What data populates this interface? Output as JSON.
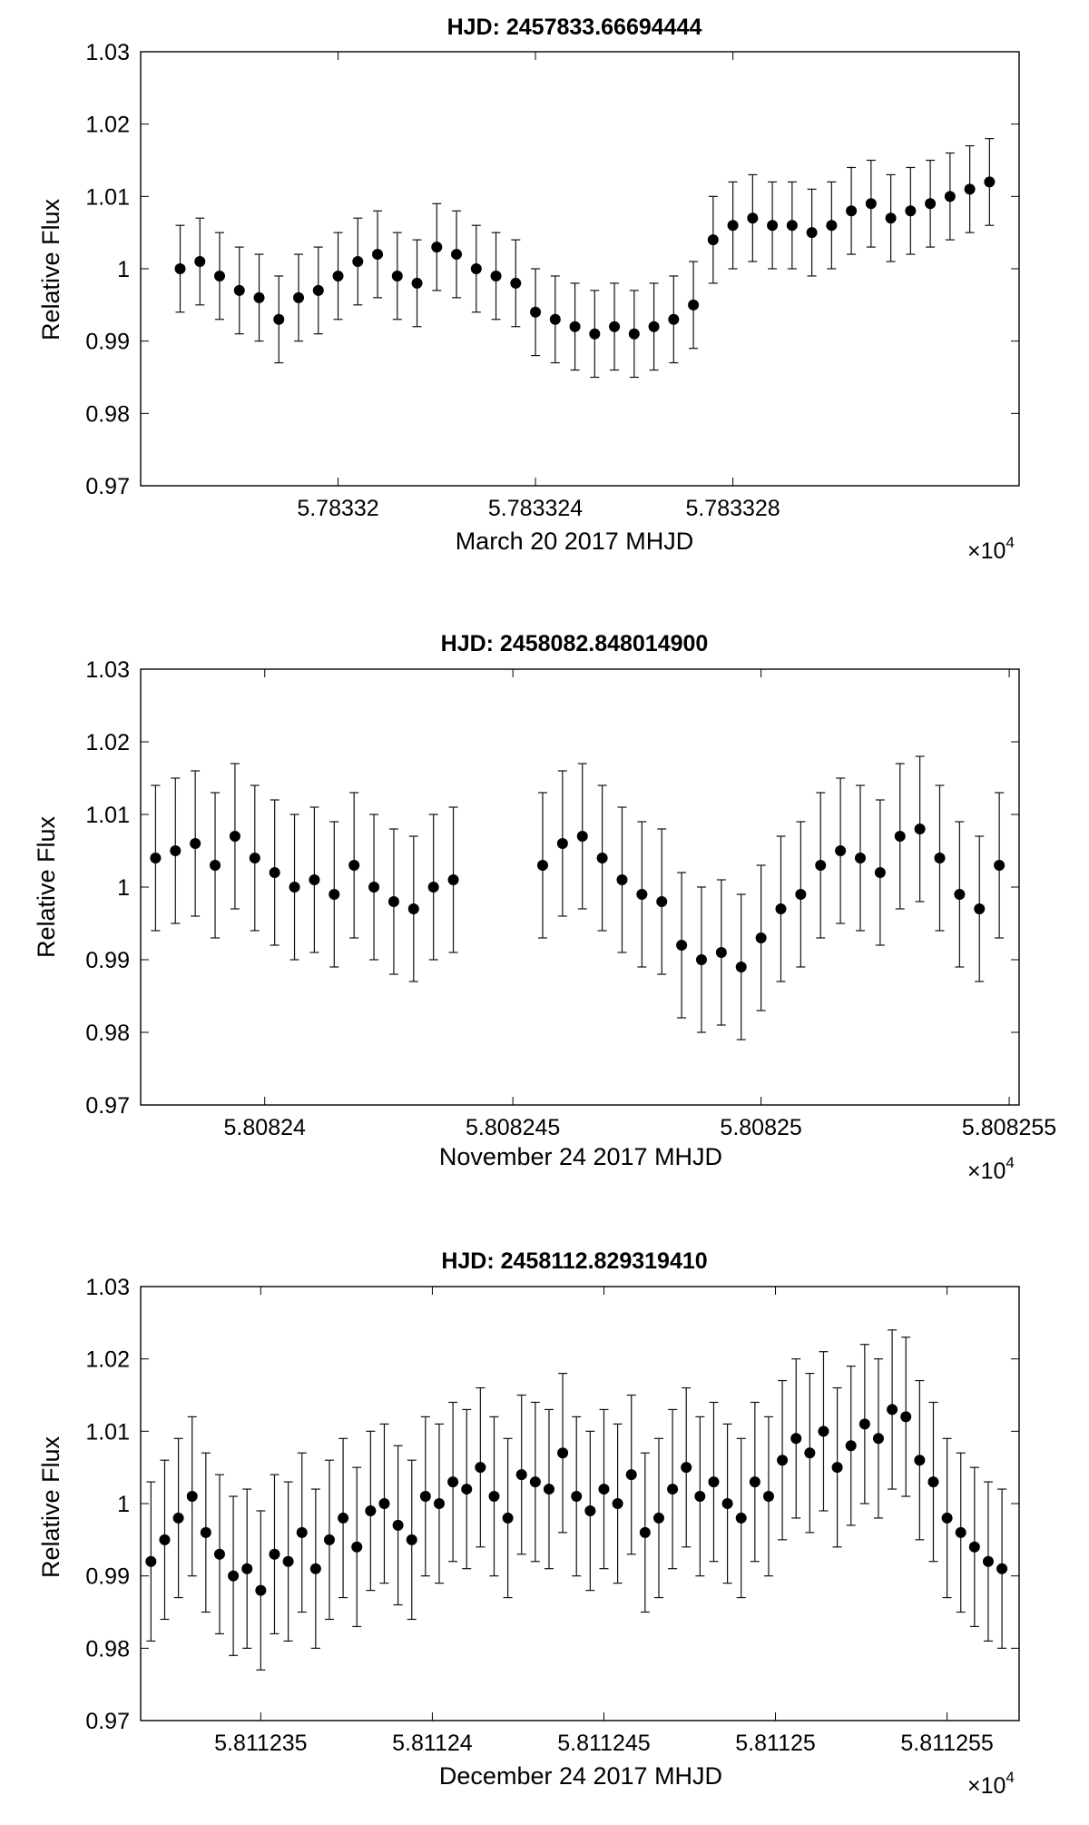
{
  "chart_data": [
    {
      "type": "scatter",
      "title": "HJD: 2457833.66694444",
      "xlabel": "March 20 2017 MHJD",
      "ylabel": "Relative Flux",
      "x_multiplier": "×10^4",
      "xlim": [
        5.783316,
        5.7833338
      ],
      "ylim": [
        0.97,
        1.03
      ],
      "xticks": [
        5.78332,
        5.783324,
        5.783328
      ],
      "xtick_labels": [
        "5.78332",
        "5.783324",
        "5.783328"
      ],
      "yticks": [
        0.97,
        0.98,
        0.99,
        1.0,
        1.01,
        1.02,
        1.03
      ],
      "ytick_labels": [
        "0.97",
        "0.98",
        "0.99",
        "1",
        "1.01",
        "1.02",
        "1.03"
      ],
      "error_bar": 0.006,
      "x": [
        5.7833168,
        5.7833172,
        5.7833176,
        5.783318,
        5.7833184,
        5.7833188,
        5.7833192,
        5.7833196,
        5.78332,
        5.7833204,
        5.7833208,
        5.7833212,
        5.7833216,
        5.783322,
        5.7833224,
        5.7833228,
        5.7833232,
        5.7833236,
        5.783324,
        5.7833244,
        5.7833248,
        5.7833252,
        5.7833256,
        5.783326,
        5.7833264,
        5.7833268,
        5.7833272,
        5.7833276,
        5.783328,
        5.7833284,
        5.7833288,
        5.7833292,
        5.7833296,
        5.78333,
        5.7833304,
        5.7833308,
        5.7833312,
        5.7833316,
        5.783332,
        5.7833324,
        5.7833328,
        5.7833332
      ],
      "y": [
        1.0,
        1.001,
        0.999,
        0.997,
        0.996,
        0.993,
        0.996,
        0.997,
        0.999,
        1.001,
        1.002,
        0.999,
        0.998,
        1.003,
        1.002,
        1.0,
        0.999,
        0.998,
        0.994,
        0.993,
        0.992,
        0.991,
        0.992,
        0.991,
        0.992,
        0.993,
        0.995,
        1.004,
        1.006,
        1.007,
        1.006,
        1.006,
        1.005,
        1.006,
        1.008,
        1.009,
        1.007,
        1.008,
        1.009,
        1.01,
        1.011,
        1.012
      ]
    },
    {
      "type": "scatter",
      "title": "HJD: 2458082.848014900",
      "xlabel": "November 24 2017 MHJD",
      "ylabel": "Relative Flux",
      "x_multiplier": "×10^4",
      "xlim": [
        5.8082375,
        5.8082552
      ],
      "ylim": [
        0.97,
        1.03
      ],
      "xticks": [
        5.80824,
        5.808245,
        5.80825,
        5.808255
      ],
      "xtick_labels": [
        "5.80824",
        "5.808245",
        "5.80825",
        "5.808255"
      ],
      "yticks": [
        0.97,
        0.98,
        0.99,
        1.0,
        1.01,
        1.02,
        1.03
      ],
      "ytick_labels": [
        "0.97",
        "0.98",
        "0.99",
        "1",
        "1.01",
        "1.02",
        "1.03"
      ],
      "error_bar": 0.01,
      "x": [
        5.8082378,
        5.8082382,
        5.8082386,
        5.808239,
        5.8082394,
        5.8082398,
        5.8082402,
        5.8082406,
        5.808241,
        5.8082414,
        5.8082418,
        5.8082422,
        5.8082426,
        5.808243,
        5.8082434,
        5.8082438,
        5.8082456,
        5.808246,
        5.8082464,
        5.8082468,
        5.8082472,
        5.8082476,
        5.808248,
        5.8082484,
        5.8082488,
        5.8082492,
        5.8082496,
        5.80825,
        5.8082504,
        5.8082508,
        5.8082512,
        5.8082516,
        5.808252,
        5.8082524,
        5.8082528,
        5.8082532,
        5.8082536,
        5.808254,
        5.8082544,
        5.8082548
      ],
      "y": [
        1.004,
        1.005,
        1.006,
        1.003,
        1.007,
        1.004,
        1.002,
        1.0,
        1.001,
        0.999,
        1.003,
        1.0,
        0.998,
        0.997,
        1.0,
        1.001,
        1.003,
        1.006,
        1.007,
        1.004,
        1.001,
        0.999,
        0.998,
        0.992,
        0.99,
        0.991,
        0.989,
        0.993,
        0.997,
        0.999,
        1.003,
        1.005,
        1.004,
        1.002,
        1.007,
        1.008,
        1.004,
        0.999,
        0.997,
        1.003
      ]
    },
    {
      "type": "scatter",
      "title": "HJD: 2458112.829319410",
      "xlabel": "December 24 2017 MHJD",
      "ylabel": "Relative Flux",
      "x_multiplier": "×10^4",
      "xlim": [
        5.8112315,
        5.8112571
      ],
      "ylim": [
        0.97,
        1.03
      ],
      "xticks": [
        5.811235,
        5.81124,
        5.811245,
        5.81125,
        5.811255
      ],
      "xtick_labels": [
        "5.811235",
        "5.81124",
        "5.811245",
        "5.81125",
        "5.811255"
      ],
      "yticks": [
        0.97,
        0.98,
        0.99,
        1.0,
        1.01,
        1.02,
        1.03
      ],
      "ytick_labels": [
        "0.97",
        "0.98",
        "0.99",
        "1",
        "1.01",
        "1.02",
        "1.03"
      ],
      "error_bar": 0.011,
      "x": [
        5.8112318,
        5.8112322,
        5.8112326,
        5.811233,
        5.8112334,
        5.8112338,
        5.8112342,
        5.8112346,
        5.811235,
        5.8112354,
        5.8112358,
        5.8112362,
        5.8112366,
        5.811237,
        5.8112374,
        5.8112378,
        5.8112382,
        5.8112386,
        5.811239,
        5.8112394,
        5.8112398,
        5.8112402,
        5.8112406,
        5.811241,
        5.8112414,
        5.8112418,
        5.8112422,
        5.8112426,
        5.811243,
        5.8112434,
        5.8112438,
        5.8112442,
        5.8112446,
        5.811245,
        5.8112454,
        5.8112458,
        5.8112462,
        5.8112466,
        5.811247,
        5.8112474,
        5.8112478,
        5.8112482,
        5.8112486,
        5.811249,
        5.8112494,
        5.8112498,
        5.8112502,
        5.8112506,
        5.811251,
        5.8112514,
        5.8112518,
        5.8112522,
        5.8112526,
        5.811253,
        5.8112534,
        5.8112538,
        5.8112542,
        5.8112546,
        5.811255,
        5.8112554,
        5.8112558,
        5.8112562,
        5.8112566
      ],
      "y": [
        0.992,
        0.995,
        0.998,
        1.001,
        0.996,
        0.993,
        0.99,
        0.991,
        0.988,
        0.993,
        0.992,
        0.996,
        0.991,
        0.995,
        0.998,
        0.994,
        0.999,
        1.0,
        0.997,
        0.995,
        1.001,
        1.0,
        1.003,
        1.002,
        1.005,
        1.001,
        0.998,
        1.004,
        1.003,
        1.002,
        1.007,
        1.001,
        0.999,
        1.002,
        1.0,
        1.004,
        0.996,
        0.998,
        1.002,
        1.005,
        1.001,
        1.003,
        1.0,
        0.998,
        1.003,
        1.001,
        1.006,
        1.009,
        1.007,
        1.01,
        1.005,
        1.008,
        1.011,
        1.009,
        1.013,
        1.012,
        1.006,
        1.003,
        0.998,
        0.996,
        0.994,
        0.992,
        0.991
      ]
    }
  ]
}
